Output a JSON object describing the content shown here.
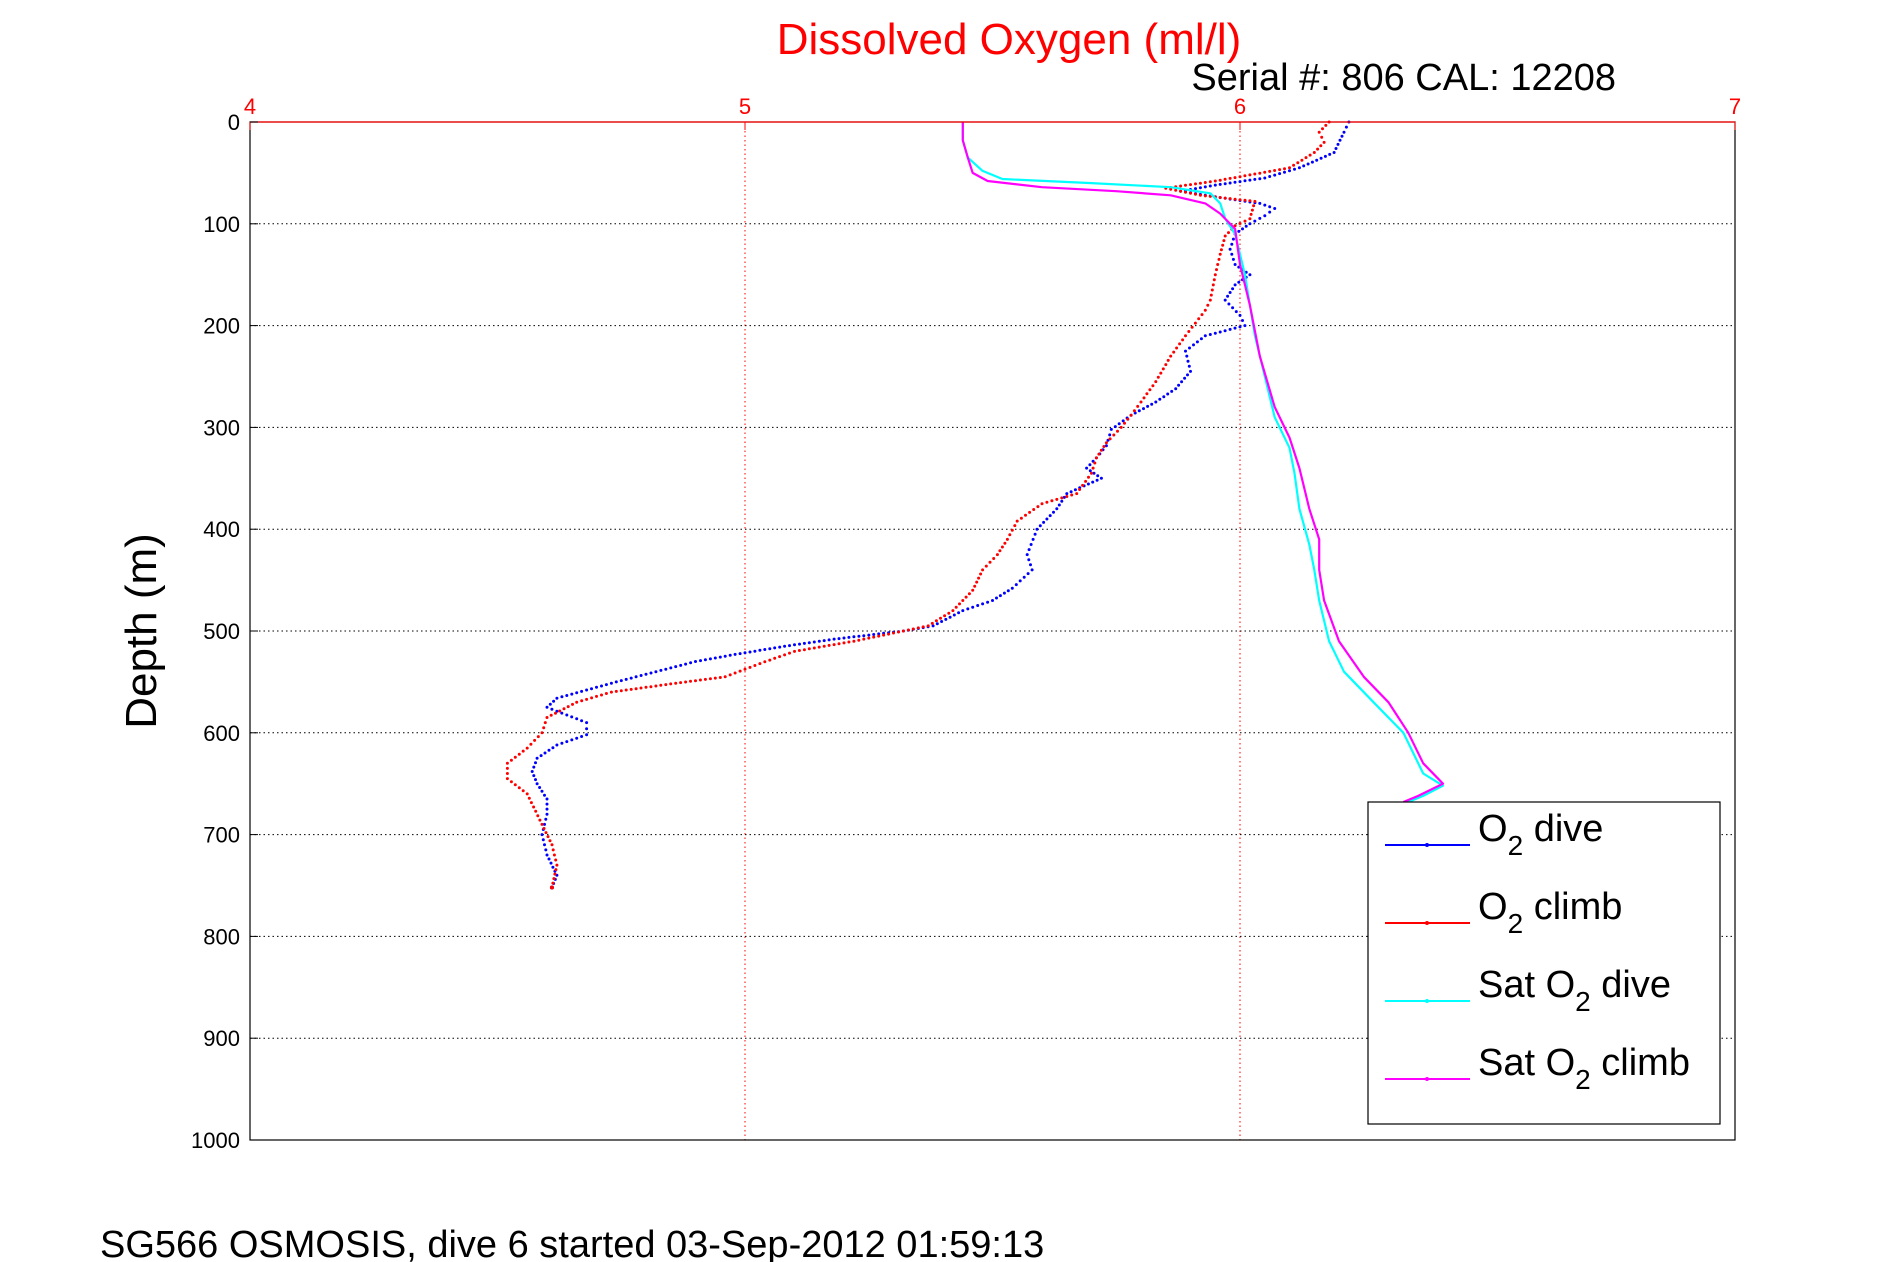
{
  "chart_data": {
    "type": "line",
    "title": "Dissolved Oxygen (ml/l)",
    "subtitle": "Serial #: 806  CAL: 12208",
    "footer": "SG566 OSMOSIS, dive 6 started 03-Sep-2012 01:59:13",
    "ylabel": "Depth (m)",
    "xlim": [
      4,
      7
    ],
    "ylim": [
      0,
      1000
    ],
    "y_reversed": true,
    "x_ticks": [
      "4",
      "5",
      "6",
      "7"
    ],
    "y_ticks": [
      "0",
      "100",
      "200",
      "300",
      "400",
      "500",
      "600",
      "700",
      "800",
      "900",
      "1000"
    ],
    "grid": true,
    "legend_position": "lower-right",
    "series": [
      {
        "name": "O2 dive",
        "legend": {
          "main": "O",
          "sub": "2",
          "rest": " dive"
        },
        "color": "#0000ff",
        "style": "dots",
        "points": [
          [
            6.22,
            0
          ],
          [
            6.21,
            10
          ],
          [
            6.19,
            30
          ],
          [
            6.12,
            45
          ],
          [
            6.05,
            55
          ],
          [
            5.95,
            62
          ],
          [
            5.88,
            68
          ],
          [
            5.97,
            75
          ],
          [
            6.04,
            80
          ],
          [
            6.07,
            85
          ],
          [
            6.05,
            92
          ],
          [
            6.02,
            100
          ],
          [
            5.99,
            110
          ],
          [
            5.98,
            125
          ],
          [
            5.99,
            140
          ],
          [
            6.02,
            150
          ],
          [
            5.99,
            160
          ],
          [
            5.97,
            175
          ],
          [
            6.0,
            190
          ],
          [
            6.01,
            200
          ],
          [
            5.93,
            210
          ],
          [
            5.89,
            225
          ],
          [
            5.9,
            245
          ],
          [
            5.87,
            262
          ],
          [
            5.83,
            275
          ],
          [
            5.78,
            288
          ],
          [
            5.74,
            302
          ],
          [
            5.73,
            318
          ],
          [
            5.71,
            330
          ],
          [
            5.69,
            340
          ],
          [
            5.72,
            350
          ],
          [
            5.65,
            365
          ],
          [
            5.63,
            380
          ],
          [
            5.59,
            400
          ],
          [
            5.57,
            425
          ],
          [
            5.58,
            440
          ],
          [
            5.54,
            458
          ],
          [
            5.5,
            470
          ],
          [
            5.44,
            480
          ],
          [
            5.38,
            495
          ],
          [
            5.32,
            500
          ],
          [
            5.18,
            508
          ],
          [
            5.08,
            515
          ],
          [
            4.98,
            523
          ],
          [
            4.9,
            530
          ],
          [
            4.82,
            540
          ],
          [
            4.74,
            550
          ],
          [
            4.68,
            558
          ],
          [
            4.62,
            566
          ],
          [
            4.6,
            575
          ],
          [
            4.68,
            590
          ],
          [
            4.68,
            602
          ],
          [
            4.62,
            612
          ],
          [
            4.58,
            625
          ],
          [
            4.57,
            638
          ],
          [
            4.58,
            650
          ],
          [
            4.6,
            665
          ],
          [
            4.6,
            680
          ],
          [
            4.59,
            700
          ],
          [
            4.6,
            720
          ],
          [
            4.62,
            740
          ],
          [
            4.61,
            752
          ]
        ]
      },
      {
        "name": "O2 climb",
        "legend": {
          "main": "O",
          "sub": "2",
          "rest": " climb"
        },
        "color": "#ff0000",
        "style": "dots",
        "points": [
          [
            6.18,
            0
          ],
          [
            6.16,
            10
          ],
          [
            6.17,
            20
          ],
          [
            6.15,
            30
          ],
          [
            6.1,
            45
          ],
          [
            6.02,
            52
          ],
          [
            5.95,
            58
          ],
          [
            5.85,
            65
          ],
          [
            5.92,
            72
          ],
          [
            6.03,
            78
          ],
          [
            6.02,
            95
          ],
          [
            5.99,
            102
          ],
          [
            5.97,
            112
          ],
          [
            5.96,
            130
          ],
          [
            5.95,
            150
          ],
          [
            5.94,
            175
          ],
          [
            5.93,
            185
          ],
          [
            5.89,
            210
          ],
          [
            5.86,
            230
          ],
          [
            5.83,
            255
          ],
          [
            5.8,
            275
          ],
          [
            5.78,
            288
          ],
          [
            5.76,
            300
          ],
          [
            5.73,
            315
          ],
          [
            5.71,
            330
          ],
          [
            5.7,
            345
          ],
          [
            5.67,
            365
          ],
          [
            5.6,
            375
          ],
          [
            5.55,
            392
          ],
          [
            5.53,
            410
          ],
          [
            5.51,
            425
          ],
          [
            5.48,
            440
          ],
          [
            5.46,
            460
          ],
          [
            5.42,
            480
          ],
          [
            5.37,
            495
          ],
          [
            5.32,
            500
          ],
          [
            5.22,
            510
          ],
          [
            5.1,
            520
          ],
          [
            5.03,
            532
          ],
          [
            4.96,
            545
          ],
          [
            4.85,
            552
          ],
          [
            4.73,
            560
          ],
          [
            4.66,
            570
          ],
          [
            4.6,
            585
          ],
          [
            4.59,
            600
          ],
          [
            4.56,
            615
          ],
          [
            4.52,
            630
          ],
          [
            4.52,
            645
          ],
          [
            4.56,
            660
          ],
          [
            4.59,
            690
          ],
          [
            4.61,
            710
          ],
          [
            4.62,
            730
          ],
          [
            4.61,
            752
          ]
        ]
      },
      {
        "name": "Sat O2 dive",
        "legend": {
          "main": "Sat O",
          "sub": "2",
          "rest": " dive"
        },
        "color": "#00ffff",
        "style": "line",
        "points": [
          [
            5.44,
            0
          ],
          [
            5.44,
            18
          ],
          [
            5.45,
            35
          ],
          [
            5.48,
            48
          ],
          [
            5.52,
            56
          ],
          [
            5.7,
            60
          ],
          [
            5.86,
            64
          ],
          [
            5.94,
            70
          ],
          [
            5.96,
            80
          ],
          [
            5.97,
            95
          ],
          [
            5.99,
            110
          ],
          [
            6.0,
            130
          ],
          [
            6.01,
            150
          ],
          [
            6.02,
            180
          ],
          [
            6.03,
            210
          ],
          [
            6.05,
            250
          ],
          [
            6.07,
            290
          ],
          [
            6.1,
            320
          ],
          [
            6.11,
            345
          ],
          [
            6.12,
            380
          ],
          [
            6.14,
            415
          ],
          [
            6.15,
            440
          ],
          [
            6.16,
            470
          ],
          [
            6.18,
            510
          ],
          [
            6.21,
            540
          ],
          [
            6.27,
            570
          ],
          [
            6.33,
            600
          ],
          [
            6.37,
            640
          ],
          [
            6.41,
            652
          ],
          [
            6.37,
            662
          ],
          [
            6.34,
            668
          ]
        ]
      },
      {
        "name": "Sat O2 climb",
        "legend": {
          "main": "Sat O",
          "sub": "2",
          "rest": " climb"
        },
        "color": "#ff00ff",
        "style": "line",
        "points": [
          [
            5.44,
            0
          ],
          [
            5.44,
            18
          ],
          [
            5.45,
            35
          ],
          [
            5.46,
            50
          ],
          [
            5.49,
            58
          ],
          [
            5.6,
            64
          ],
          [
            5.75,
            68
          ],
          [
            5.86,
            72
          ],
          [
            5.93,
            80
          ],
          [
            5.96,
            90
          ],
          [
            5.99,
            105
          ],
          [
            6.0,
            140
          ],
          [
            6.02,
            180
          ],
          [
            6.04,
            230
          ],
          [
            6.07,
            280
          ],
          [
            6.1,
            310
          ],
          [
            6.12,
            340
          ],
          [
            6.14,
            380
          ],
          [
            6.16,
            410
          ],
          [
            6.16,
            440
          ],
          [
            6.17,
            470
          ],
          [
            6.2,
            510
          ],
          [
            6.25,
            545
          ],
          [
            6.3,
            570
          ],
          [
            6.34,
            600
          ],
          [
            6.37,
            630
          ],
          [
            6.41,
            650
          ],
          [
            6.36,
            662
          ],
          [
            6.33,
            668
          ]
        ]
      }
    ]
  }
}
